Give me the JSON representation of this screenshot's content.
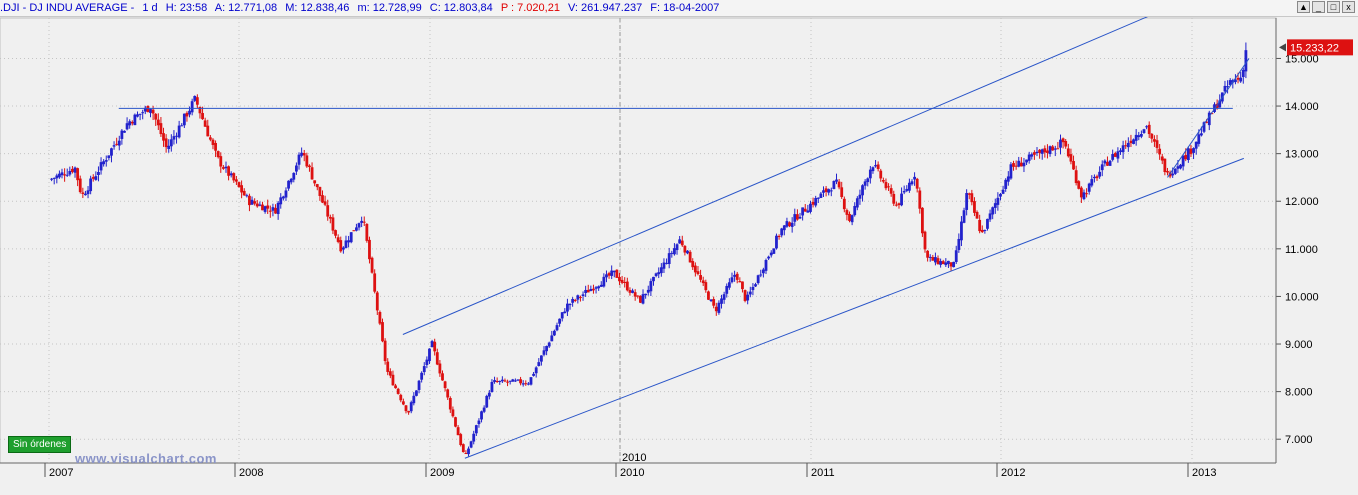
{
  "header": {
    "symbol": ".DJI - DJ INDU AVERAGE -",
    "period": "1 d",
    "hour": "H: 23:58",
    "open": "A: 12.771,08",
    "high": "M: 12.838,46",
    "low": "m: 12.728,99",
    "close": "C: 12.803,84",
    "points": "P : 7.020,21",
    "volume": "V: 261.947.237",
    "date": "F: 18-04-2007"
  },
  "window_buttons": [
    "▲",
    "_",
    "□",
    "x"
  ],
  "orders_badge": "Sin órdenes",
  "watermark": "www.visualchart.com",
  "chart_data": {
    "type": "candlestick",
    "title": "",
    "xlabel": "",
    "ylabel": "",
    "ylim": [
      6500,
      15850
    ],
    "y_ticks": [
      7000,
      8000,
      9000,
      10000,
      11000,
      12000,
      13000,
      14000,
      15000
    ],
    "y_tick_labels": [
      "7.000",
      "8.000",
      "9.000",
      "10.000",
      "11.000",
      "12.000",
      "13.000",
      "14.000",
      "15.000"
    ],
    "x_range": [
      "2007-01-01",
      "2013-04-20"
    ],
    "x_labels": [
      {
        "label": "2007",
        "date": "2007-01-01"
      },
      {
        "label": "2008",
        "date": "2008-01-01"
      },
      {
        "label": "2009",
        "date": "2009-01-01"
      },
      {
        "label": "2010",
        "date": "2010-01-01"
      },
      {
        "label": "2011",
        "date": "2011-01-01"
      },
      {
        "label": "2012",
        "date": "2012-01-01"
      },
      {
        "label": "2013",
        "date": "2013-01-01"
      }
    ],
    "cursor_label": {
      "label": "2010",
      "date": "2010-01-01"
    },
    "last_price_label": "15.233,22",
    "last_price": 15233,
    "colors": {
      "up": "#2222cc",
      "down": "#dd1111",
      "line": "#2a55c8",
      "price_tag": "#dd1111"
    },
    "series": [
      {
        "type": "close-path",
        "points": [
          [
            "2007-01-01",
            12450
          ],
          [
            "2007-02-20",
            12700
          ],
          [
            "2007-03-05",
            12100
          ],
          [
            "2007-04-20",
            12900
          ],
          [
            "2007-06-01",
            13650
          ],
          [
            "2007-07-15",
            14000
          ],
          [
            "2007-08-15",
            13100
          ],
          [
            "2007-10-09",
            14150
          ],
          [
            "2007-11-20",
            12900
          ],
          [
            "2008-01-20",
            12000
          ],
          [
            "2008-03-10",
            11800
          ],
          [
            "2008-05-01",
            13050
          ],
          [
            "2008-07-15",
            11000
          ],
          [
            "2008-08-25",
            11700
          ],
          [
            "2008-10-10",
            8450
          ],
          [
            "2008-11-20",
            7550
          ],
          [
            "2009-01-05",
            9000
          ],
          [
            "2009-03-09",
            6600
          ],
          [
            "2009-05-01",
            8200
          ],
          [
            "2009-07-10",
            8200
          ],
          [
            "2009-09-20",
            9800
          ],
          [
            "2009-12-20",
            10500
          ],
          [
            "2010-02-08",
            9900
          ],
          [
            "2010-04-26",
            11200
          ],
          [
            "2010-07-02",
            9700
          ],
          [
            "2010-08-10",
            10500
          ],
          [
            "2010-08-30",
            9900
          ],
          [
            "2010-11-05",
            11400
          ],
          [
            "2011-02-18",
            12400
          ],
          [
            "2011-03-16",
            11600
          ],
          [
            "2011-04-29",
            12800
          ],
          [
            "2011-06-15",
            11900
          ],
          [
            "2011-07-20",
            12600
          ],
          [
            "2011-08-10",
            10800
          ],
          [
            "2011-10-03",
            10650
          ],
          [
            "2011-10-28",
            12200
          ],
          [
            "2011-11-25",
            11300
          ],
          [
            "2012-01-20",
            12700
          ],
          [
            "2012-05-01",
            13250
          ],
          [
            "2012-06-04",
            12100
          ],
          [
            "2012-07-20",
            12800
          ],
          [
            "2012-10-05",
            13600
          ],
          [
            "2012-11-15",
            12550
          ],
          [
            "2012-12-31",
            13100
          ],
          [
            "2013-02-15",
            14000
          ],
          [
            "2013-03-15",
            14500
          ],
          [
            "2013-04-05",
            14600
          ],
          [
            "2013-04-15",
            15233
          ]
        ]
      }
    ],
    "trendlines": [
      {
        "from": [
          "2008-11-10",
          9200
        ],
        "to": [
          "2013-04-01",
          16700
        ]
      },
      {
        "from": [
          "2009-03-09",
          6600
        ],
        "to": [
          "2013-04-10",
          12900
        ]
      },
      {
        "from": [
          "2007-05-15",
          13950
        ],
        "to": [
          "2013-03-20",
          13950
        ]
      },
      {
        "from": [
          "2012-11-15",
          12500
        ],
        "to": [
          "2013-04-20",
          15000
        ]
      }
    ]
  }
}
